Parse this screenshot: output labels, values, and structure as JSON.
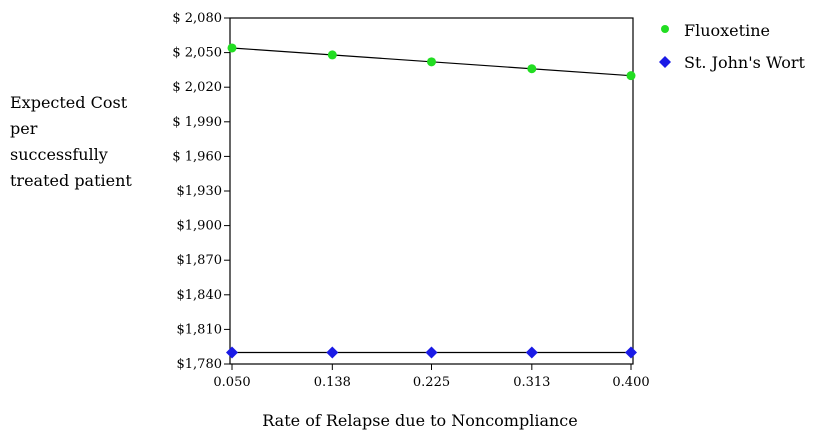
{
  "chart_data": {
    "type": "line",
    "title": "",
    "xlabel": "Rate of Relapse due to Noncompliance",
    "ylabel_lines": [
      "Expected Cost",
      "per",
      "successfully",
      "treated patient"
    ],
    "x": [
      0.05,
      0.138,
      0.225,
      0.313,
      0.4
    ],
    "x_tick_labels": [
      "0.050",
      "0.138",
      "0.225",
      "0.313",
      "0.400"
    ],
    "xlim": [
      0.05,
      0.4
    ],
    "ylim": [
      1780,
      2080
    ],
    "y_ticks": [
      1780,
      1810,
      1840,
      1870,
      1900,
      1930,
      1960,
      1990,
      2020,
      2050,
      2080
    ],
    "y_tick_labels": [
      "$1,780",
      "$1,810",
      "$1,840",
      "$1,870",
      "$1,900",
      "$1,930",
      "$ 1,960",
      "$ 1,990",
      "$ 2,020",
      "$ 2,050",
      "$ 2,080"
    ],
    "grid": false,
    "legend_position": "right",
    "series": [
      {
        "name": "Fluoxetine",
        "values": [
          2054,
          2048,
          2042,
          2036,
          2030
        ],
        "color": "#22dd22",
        "marker": "circle"
      },
      {
        "name": "St. John's Wort",
        "values": [
          1790,
          1790,
          1790,
          1790,
          1790
        ],
        "color": "#1a1ae6",
        "marker": "diamond"
      }
    ]
  }
}
